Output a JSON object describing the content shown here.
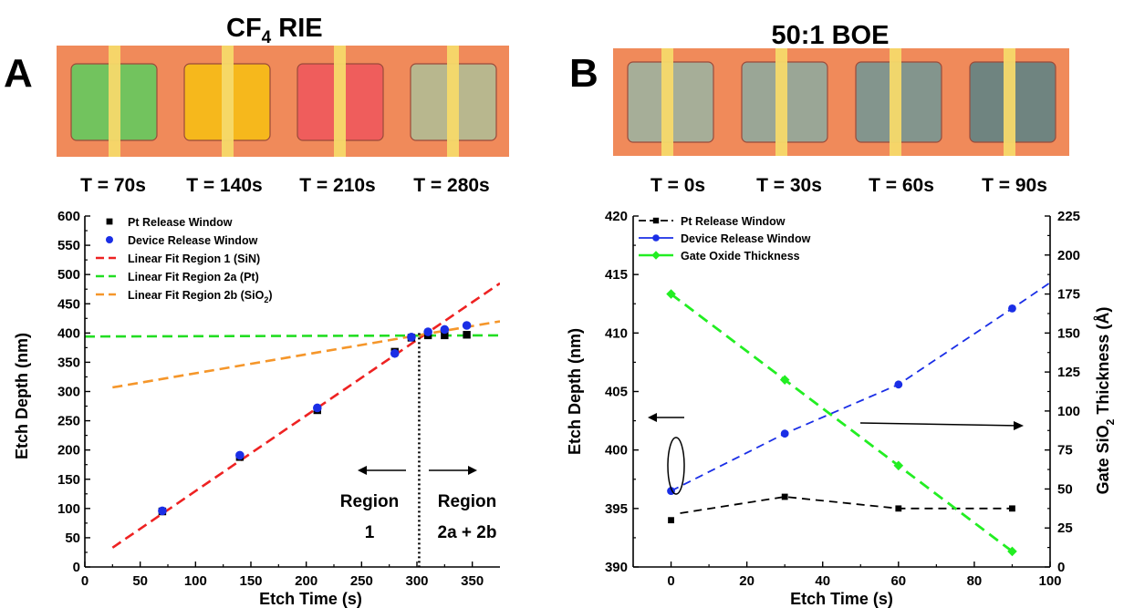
{
  "panel_a": {
    "letter": "A",
    "title_main": "CF",
    "title_sub": "4",
    "title_tail": " RIE",
    "images": [
      {
        "label": "T = 70s",
        "fill": "#72c35e"
      },
      {
        "label": "T = 140s",
        "fill": "#f6b81c"
      },
      {
        "label": "T = 210s",
        "fill": "#ef5d5c"
      },
      {
        "label": "T = 280s",
        "fill": "#b8b78e"
      }
    ],
    "region1_label": "Region",
    "region1_num": "1",
    "region2_label": "Region",
    "region2_num": "2a + 2b"
  },
  "panel_b": {
    "letter": "B",
    "title": "50:1 BOE",
    "images": [
      {
        "label": "T = 0s",
        "fill": "#a6ae98"
      },
      {
        "label": "T = 30s",
        "fill": "#9aa696"
      },
      {
        "label": "T = 60s",
        "fill": "#83958d"
      },
      {
        "label": "T = 90s",
        "fill": "#6f8480"
      }
    ]
  },
  "colors": {
    "pad": "#f08a5a",
    "stripe": "#f6d96a",
    "fit1": "#ee2222",
    "fit2a": "#22dd22",
    "fit2b": "#f5962a",
    "blue": "#1a2ee6",
    "green": "#22ee22"
  },
  "chart_data": [
    {
      "type": "scatter",
      "xlabel": "Etch Time (s)",
      "ylabel": "Etch Depth (nm)",
      "xlim": [
        0,
        375
      ],
      "ylim": [
        0,
        600
      ],
      "xticks": [
        0,
        50,
        100,
        150,
        200,
        250,
        300,
        350
      ],
      "yticks": [
        0,
        50,
        100,
        150,
        200,
        250,
        300,
        350,
        400,
        450,
        500,
        550,
        600
      ],
      "series": [
        {
          "name": "Pt Release Window",
          "marker": "square",
          "color": "#000000",
          "x": [
            70,
            140,
            210,
            280,
            295,
            310,
            325,
            345
          ],
          "y": [
            95,
            188,
            268,
            368,
            392,
            396,
            396,
            397
          ]
        },
        {
          "name": "Device Release Window",
          "marker": "circle",
          "color": "#1a2ee6",
          "x": [
            70,
            140,
            210,
            280,
            295,
            310,
            325,
            345
          ],
          "y": [
            96,
            191,
            272,
            365,
            393,
            402,
            406,
            413
          ]
        }
      ],
      "fits": [
        {
          "name": "Linear Fit Region 1 (SiN)",
          "color": "#ee2222",
          "x": [
            25,
            375
          ],
          "y": [
            33,
            485
          ]
        },
        {
          "name": "Linear Fit Region 2a (Pt)",
          "color": "#22dd22",
          "x": [
            0,
            375
          ],
          "y": [
            394,
            396
          ]
        },
        {
          "name_main": "Linear Fit Region 2b (SiO",
          "name_sub": "2",
          "name_tail": ")",
          "color": "#f5962a",
          "x": [
            25,
            375
          ],
          "y": [
            307,
            420
          ]
        }
      ],
      "divider_x": 302,
      "legend": "top-left"
    },
    {
      "type": "line",
      "xlabel": "Etch Time (s)",
      "ylabel": "Etch Depth (nm)",
      "ylabel2_main": "Gate SiO",
      "ylabel2_sub": "2",
      "ylabel2_tail": " Thickness (Å)",
      "xlim": [
        -10,
        100
      ],
      "ylim": [
        390,
        420
      ],
      "y2lim": [
        0,
        225
      ],
      "xticks": [
        0,
        20,
        40,
        60,
        80,
        100
      ],
      "yticks": [
        390,
        395,
        400,
        405,
        410,
        415,
        420
      ],
      "y2ticks": [
        0,
        25,
        50,
        75,
        100,
        125,
        150,
        175,
        200,
        225
      ],
      "series": [
        {
          "name": "Pt Release Window",
          "axis": "left",
          "marker": "square",
          "color": "#000000",
          "x": [
            0,
            30,
            60,
            90
          ],
          "y": [
            394,
            396,
            395,
            395
          ]
        },
        {
          "name": "Device Release Window",
          "axis": "left",
          "marker": "circle",
          "color": "#1a2ee6",
          "x": [
            0,
            30,
            60,
            90
          ],
          "y": [
            396.5,
            401.4,
            405.6,
            412.1
          ]
        },
        {
          "name": "Gate Oxide Thickness",
          "axis": "right",
          "marker": "diamond",
          "color": "#22ee22",
          "x": [
            0,
            30,
            60,
            90
          ],
          "y": [
            175,
            120,
            65,
            10
          ]
        }
      ],
      "legend": "top-left"
    }
  ]
}
